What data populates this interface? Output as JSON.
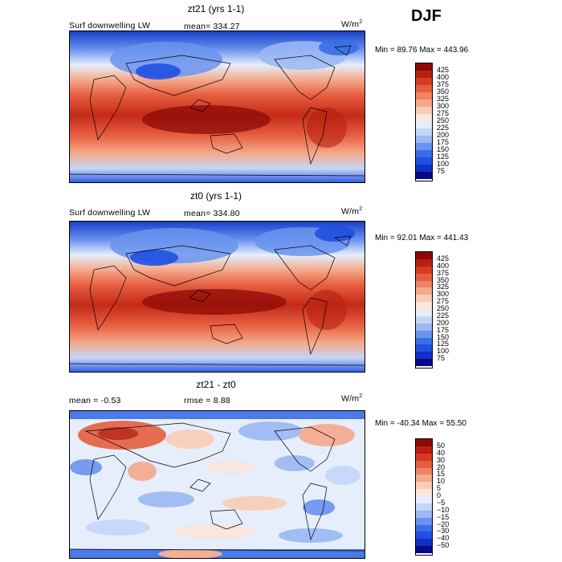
{
  "season": "DJF",
  "panels": [
    {
      "title": "zt21 (yrs 1-1)",
      "left_label": "Surf downwelling LW",
      "center_label": "mean=  334.27",
      "unit_base": "W/m",
      "unit_exp": "2",
      "minmax": "Min =   89.76 Max =  443.96",
      "colorbar_colors": [
        "#08088a",
        "#1030c8",
        "#2050e0",
        "#3a6ee8",
        "#6a93ef",
        "#9bb8f4",
        "#c4d6f8",
        "#e6eefb",
        "#fbe7dc",
        "#f9cdb6",
        "#f4a98a",
        "#ee8463",
        "#e65e3f",
        "#d63a22",
        "#b81f12",
        "#8e0a06"
      ],
      "colorbar_labels": [
        "425",
        "400",
        "375",
        "350",
        "325",
        "300",
        "275",
        "250",
        "225",
        "200",
        "175",
        "150",
        "125",
        "100",
        "75"
      ],
      "map_desc": "absolute"
    },
    {
      "title": "zt0 (yrs 1-1)",
      "left_label": "Surf downwelling LW",
      "center_label": "mean=  334.80",
      "unit_base": "W/m",
      "unit_exp": "2",
      "minmax": "Min =   92.01 Max =  441.43",
      "colorbar_colors": [
        "#08088a",
        "#1030c8",
        "#2050e0",
        "#3a6ee8",
        "#6a93ef",
        "#9bb8f4",
        "#c4d6f8",
        "#e6eefb",
        "#fbe7dc",
        "#f9cdb6",
        "#f4a98a",
        "#ee8463",
        "#e65e3f",
        "#d63a22",
        "#b81f12",
        "#8e0a06"
      ],
      "colorbar_labels": [
        "425",
        "400",
        "375",
        "350",
        "325",
        "300",
        "275",
        "250",
        "225",
        "200",
        "175",
        "150",
        "125",
        "100",
        "75"
      ],
      "map_desc": "absolute"
    },
    {
      "title": "zt21 - zt0",
      "left_label": "mean =   -0.53",
      "center_label": "rmse =    8.88",
      "unit_base": "W/m",
      "unit_exp": "2",
      "minmax": "Min = -40.34 Max =   55.50",
      "colorbar_colors": [
        "#08088a",
        "#1030c8",
        "#2050e0",
        "#3a6ee8",
        "#6a93ef",
        "#9bb8f4",
        "#c4d6f8",
        "#e6eefb",
        "#fbe7dc",
        "#f9cdb6",
        "#f4a98a",
        "#ee8463",
        "#e65e3f",
        "#d63a22",
        "#b81f12",
        "#8e0a06"
      ],
      "colorbar_labels": [
        "50",
        "40",
        "30",
        "20",
        "15",
        "10",
        "5",
        "0",
        "−5",
        "−10",
        "−15",
        "−20",
        "−30",
        "−40",
        "−50"
      ],
      "map_desc": "difference"
    }
  ]
}
